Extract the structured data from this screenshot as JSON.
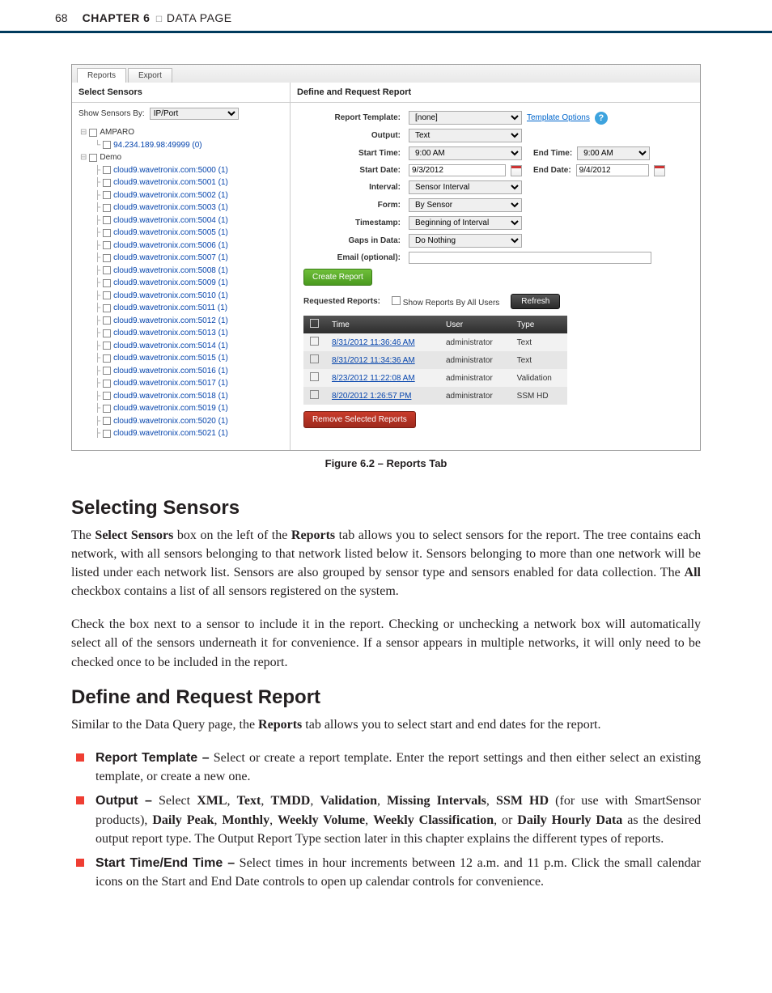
{
  "header": {
    "page_number": "68",
    "chapter_label": "CHAPTER 6",
    "chapter_title": "DATA PAGE"
  },
  "screenshot": {
    "tabs": {
      "reports": "Reports",
      "export": "Export"
    },
    "left": {
      "title": "Select Sensors",
      "show_by_label": "Show Sensors By:",
      "show_by_value": "IP/Port",
      "tree": {
        "root1": "AMPARO",
        "root1_child": "94.234.189.98:49999 (0)",
        "root2": "Demo",
        "items": [
          "cloud9.wavetronix.com:5000 (1)",
          "cloud9.wavetronix.com:5001 (1)",
          "cloud9.wavetronix.com:5002 (1)",
          "cloud9.wavetronix.com:5003 (1)",
          "cloud9.wavetronix.com:5004 (1)",
          "cloud9.wavetronix.com:5005 (1)",
          "cloud9.wavetronix.com:5006 (1)",
          "cloud9.wavetronix.com:5007 (1)",
          "cloud9.wavetronix.com:5008 (1)",
          "cloud9.wavetronix.com:5009 (1)",
          "cloud9.wavetronix.com:5010 (1)",
          "cloud9.wavetronix.com:5011 (1)",
          "cloud9.wavetronix.com:5012 (1)",
          "cloud9.wavetronix.com:5013 (1)",
          "cloud9.wavetronix.com:5014 (1)",
          "cloud9.wavetronix.com:5015 (1)",
          "cloud9.wavetronix.com:5016 (1)",
          "cloud9.wavetronix.com:5017 (1)",
          "cloud9.wavetronix.com:5018 (1)",
          "cloud9.wavetronix.com:5019 (1)",
          "cloud9.wavetronix.com:5020 (1)",
          "cloud9.wavetronix.com:5021 (1)"
        ]
      }
    },
    "right": {
      "title": "Define and Request Report",
      "labels": {
        "template": "Report Template:",
        "template_val": "[none]",
        "template_opts": "Template Options",
        "output": "Output:",
        "output_val": "Text",
        "start_time": "Start Time:",
        "start_time_val": "9:00 AM",
        "end_time": "End Time:",
        "end_time_val": "9:00 AM",
        "start_date": "Start Date:",
        "start_date_val": "9/3/2012",
        "end_date": "End Date:",
        "end_date_val": "9/4/2012",
        "interval": "Interval:",
        "interval_val": "Sensor Interval",
        "form": "Form:",
        "form_val": "By Sensor",
        "timestamp": "Timestamp:",
        "timestamp_val": "Beginning of Interval",
        "gaps": "Gaps in Data:",
        "gaps_val": "Do Nothing",
        "email": "Email (optional):"
      },
      "btn_create": "Create Report",
      "requested": "Requested Reports:",
      "show_all": "Show Reports By All Users",
      "btn_refresh": "Refresh",
      "table": {
        "headers": {
          "time": "Time",
          "user": "User",
          "type": "Type"
        },
        "rows": [
          {
            "time": "8/31/2012 11:36:46 AM",
            "user": "administrator",
            "type": "Text"
          },
          {
            "time": "8/31/2012 11:34:36 AM",
            "user": "administrator",
            "type": "Text"
          },
          {
            "time": "8/23/2012 11:22:08 AM",
            "user": "administrator",
            "type": "Validation"
          },
          {
            "time": "8/20/2012 1:26:57 PM",
            "user": "administrator",
            "type": "SSM HD"
          }
        ]
      },
      "btn_remove": "Remove Selected Reports"
    }
  },
  "caption": "Figure 6.2 – Reports Tab",
  "s1": {
    "heading": "Selecting Sensors",
    "p1a": "The ",
    "p1b": "Select Sensors",
    "p1c": " box on the left of the ",
    "p1d": "Reports",
    "p1e": " tab allows you to select sensors for the report. The tree contains each network, with all sensors belonging to that network listed below it. Sensors belonging to more than one network will be listed under each network list. Sensors are also grouped by sensor type and sensors enabled for data collection. The ",
    "p1f": "All",
    "p1g": " checkbox contains a list of all sensors registered on the system.",
    "p2": "Check the box next to a sensor to include it in the report. Checking or unchecking a network box will automatically select all of the sensors underneath it for convenience. If a sensor appears in multiple networks, it will only need to be checked once to be included in the report."
  },
  "s2": {
    "heading": "Define and Request Report",
    "p1a": "Similar to the Data Query page, the ",
    "p1b": "Reports",
    "p1c": " tab allows you to select start and end dates for the report.",
    "b1": {
      "label": "Report Template –",
      "text": " Select or create a report template. Enter the report settings and then either select an existing template, or create a new one."
    },
    "b2": {
      "label": "Output –",
      "t1": " Select ",
      "xml": "XML",
      "c1": ", ",
      "txt": "Text",
      "c2": ", ",
      "tmdd": "TMDD",
      "c3": ", ",
      "val": "Validation",
      "c4": ", ",
      "miss": "Missing Intervals",
      "c5": ", ",
      "ssm": "SSM HD",
      "t2": " (for use with SmartSensor products), ",
      "dp": "Daily Peak",
      "c6": ", ",
      "mo": "Monthly",
      "c7": ", ",
      "wv": "Weekly Volume",
      "c8": ", ",
      "wc": "Weekly Classification",
      "c9": ", or ",
      "dh": "Daily Hourly Data",
      "t3": " as the desired output report type. The Output Report Type section later in this chapter explains the different types of reports."
    },
    "b3": {
      "label": "Start Time/End Time –",
      "text": " Select times in hour increments between 12 a.m. and 11 p.m. Click the small calendar icons on the Start and End Date controls to open up calendar controls for convenience."
    }
  }
}
